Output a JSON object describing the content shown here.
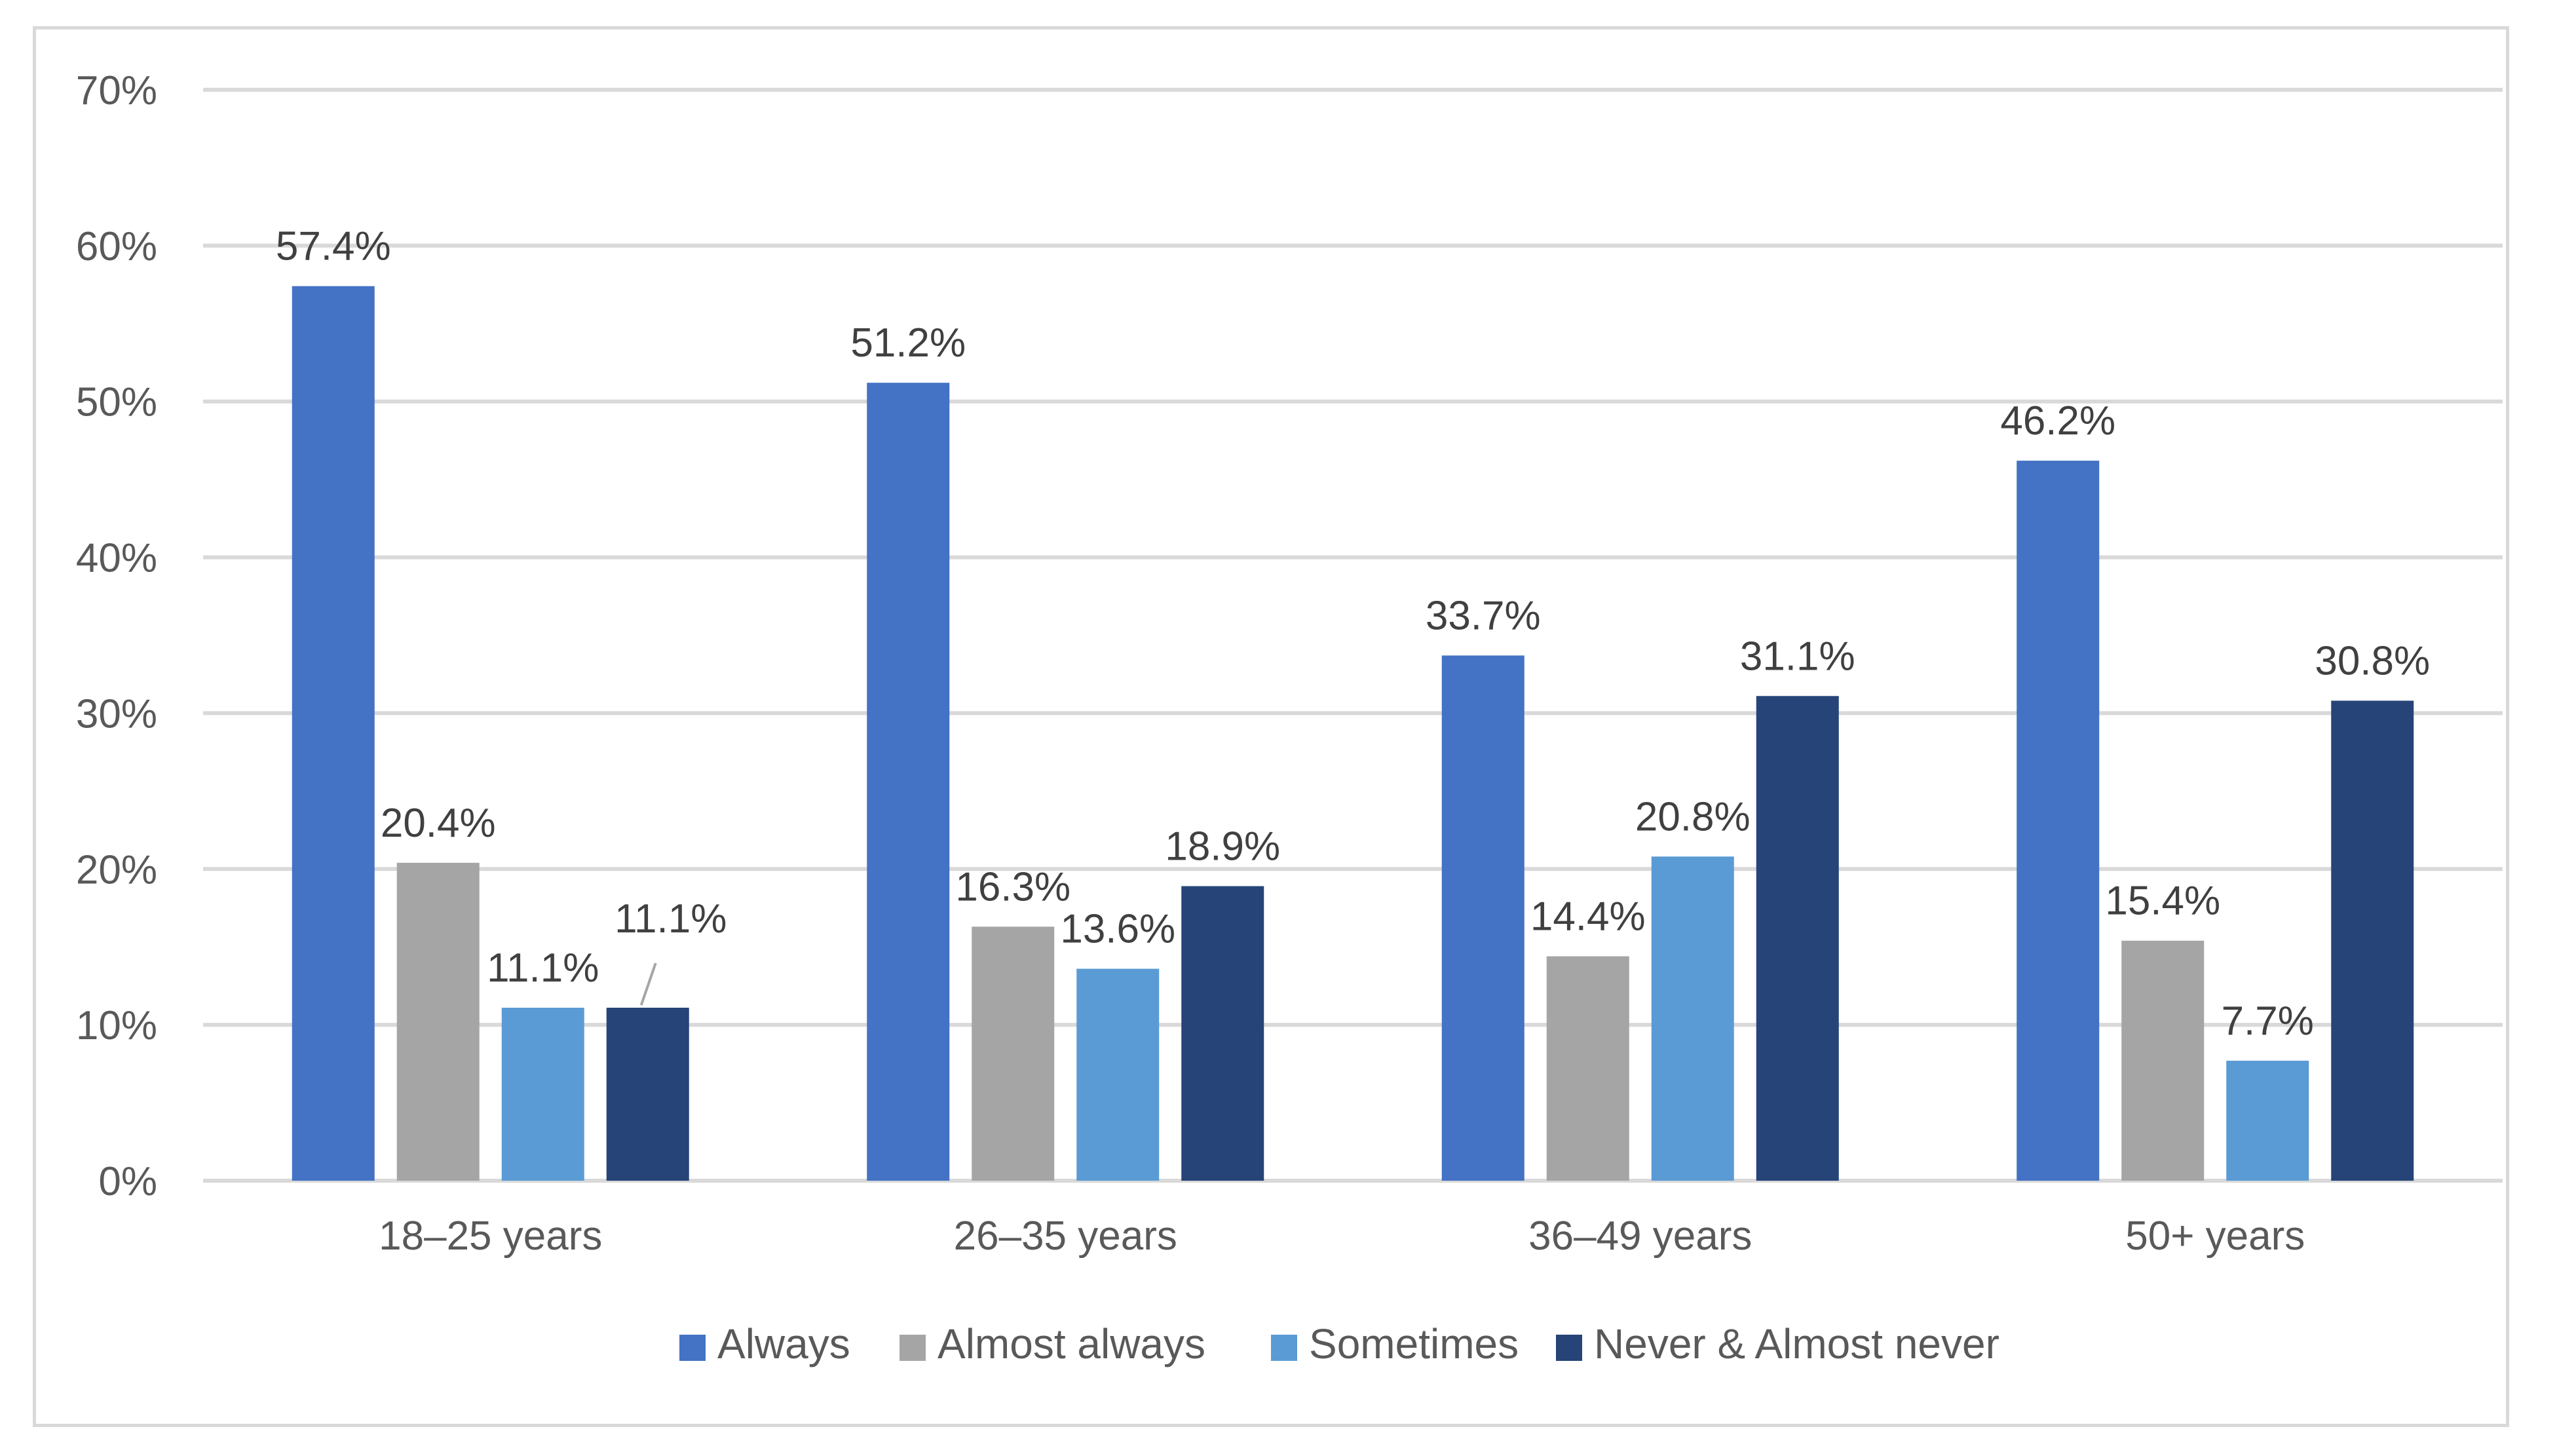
{
  "chart_data": {
    "type": "bar",
    "title": "",
    "xlabel": "",
    "ylabel": "",
    "ylim": [
      0,
      70
    ],
    "yticks": [
      0,
      10,
      20,
      30,
      40,
      50,
      60,
      70
    ],
    "ytick_labels": [
      "0%",
      "10%",
      "20%",
      "30%",
      "40%",
      "50%",
      "60%",
      "70%"
    ],
    "grid": true,
    "legend_position": "bottom",
    "categories": [
      "18–25 years",
      "26–35 years",
      "36–49 years",
      "50+ years"
    ],
    "series": [
      {
        "name": "Always",
        "color": "#4472c4",
        "values": [
          57.4,
          51.2,
          33.7,
          46.2
        ],
        "labels": [
          "57.4%",
          "51.2%",
          "33.7%",
          "46.2%"
        ]
      },
      {
        "name": "Almost always",
        "color": "#a5a5a5",
        "values": [
          20.4,
          16.3,
          14.4,
          15.4
        ],
        "labels": [
          "20.4%",
          "16.3%",
          "14.4%",
          "15.4%"
        ]
      },
      {
        "name": "Sometimes",
        "color": "#5b9bd5",
        "values": [
          11.1,
          13.6,
          20.8,
          7.7
        ],
        "labels": [
          "11.1%",
          "13.6%",
          "20.8%",
          "7.7%"
        ]
      },
      {
        "name": "Never & Almost never",
        "color": "#264478",
        "values": [
          11.1,
          18.9,
          31.1,
          30.8
        ],
        "labels": [
          "11.1%",
          "18.9%",
          "31.1%",
          "30.8%"
        ]
      }
    ]
  }
}
